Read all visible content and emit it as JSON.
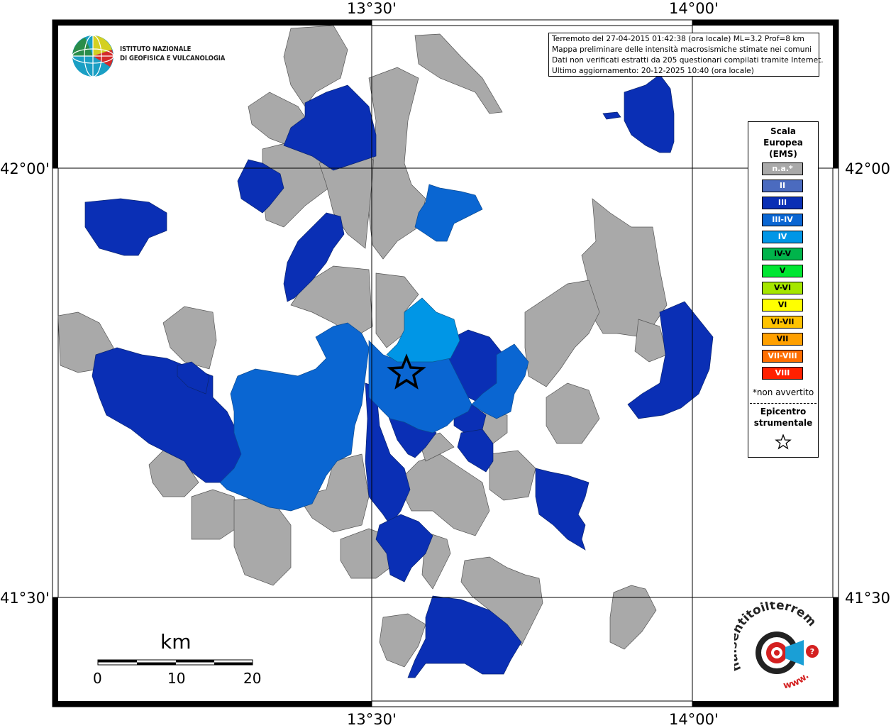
{
  "axes": {
    "top": [
      "13°30'",
      "14°00'"
    ],
    "bottom": [
      "13°30'",
      "14°00'"
    ],
    "left": [
      "42°00'",
      "41°30'"
    ],
    "right": [
      "42°00'",
      "41°30'"
    ]
  },
  "info": {
    "line1": "Terremoto del 27-04-2015 01:42:38 (ora locale) ML=3.2 Prof=8 km",
    "line2": "Mappa preliminare delle intensità macrosismiche stimate nei comuni",
    "line3": "Dati non verificati estratti da 205 questionari compilati tramite Internet.",
    "line4": "Ultimo aggiornamento: 20-12-2025 10:40 (ora locale)"
  },
  "institute": {
    "line1": "ISTITUTO NAZIONALE",
    "line2": "DI GEOFISICA E VULCANOLOGIA"
  },
  "legend": {
    "title": [
      "Scala",
      "Europea",
      "(EMS)"
    ],
    "items": [
      {
        "label": "n.a.*",
        "color": "#a9a9a9"
      },
      {
        "label": "II",
        "color": "#4b6bbf"
      },
      {
        "label": "III",
        "color": "#0a2fb5"
      },
      {
        "label": "III-IV",
        "color": "#0a66d2"
      },
      {
        "label": "IV",
        "color": "#0096e6"
      },
      {
        "label": "IV-V",
        "color": "#00b44b"
      },
      {
        "label": "V",
        "color": "#00e632"
      },
      {
        "label": "V-VI",
        "color": "#a5e600"
      },
      {
        "label": "VI",
        "color": "#ffff00"
      },
      {
        "label": "VI-VII",
        "color": "#ffc300"
      },
      {
        "label": "VII",
        "color": "#ffa000"
      },
      {
        "label": "VII-VIII",
        "color": "#ff6e00"
      },
      {
        "label": "VIII",
        "color": "#ff2000"
      }
    ],
    "note": "*non avvertito",
    "epicenter": [
      "Epicentro",
      "strumentale"
    ]
  },
  "scalebar": {
    "unit": "km",
    "ticks": [
      "0",
      "10",
      "20"
    ]
  },
  "website": {
    "text": "haisentitoilterremoto.it",
    "www": "www."
  },
  "colors": {
    "na": "#a9a9a9",
    "iii": "#0a2fb5",
    "iii_iv": "#0a66d2",
    "iv": "#0096e6"
  }
}
